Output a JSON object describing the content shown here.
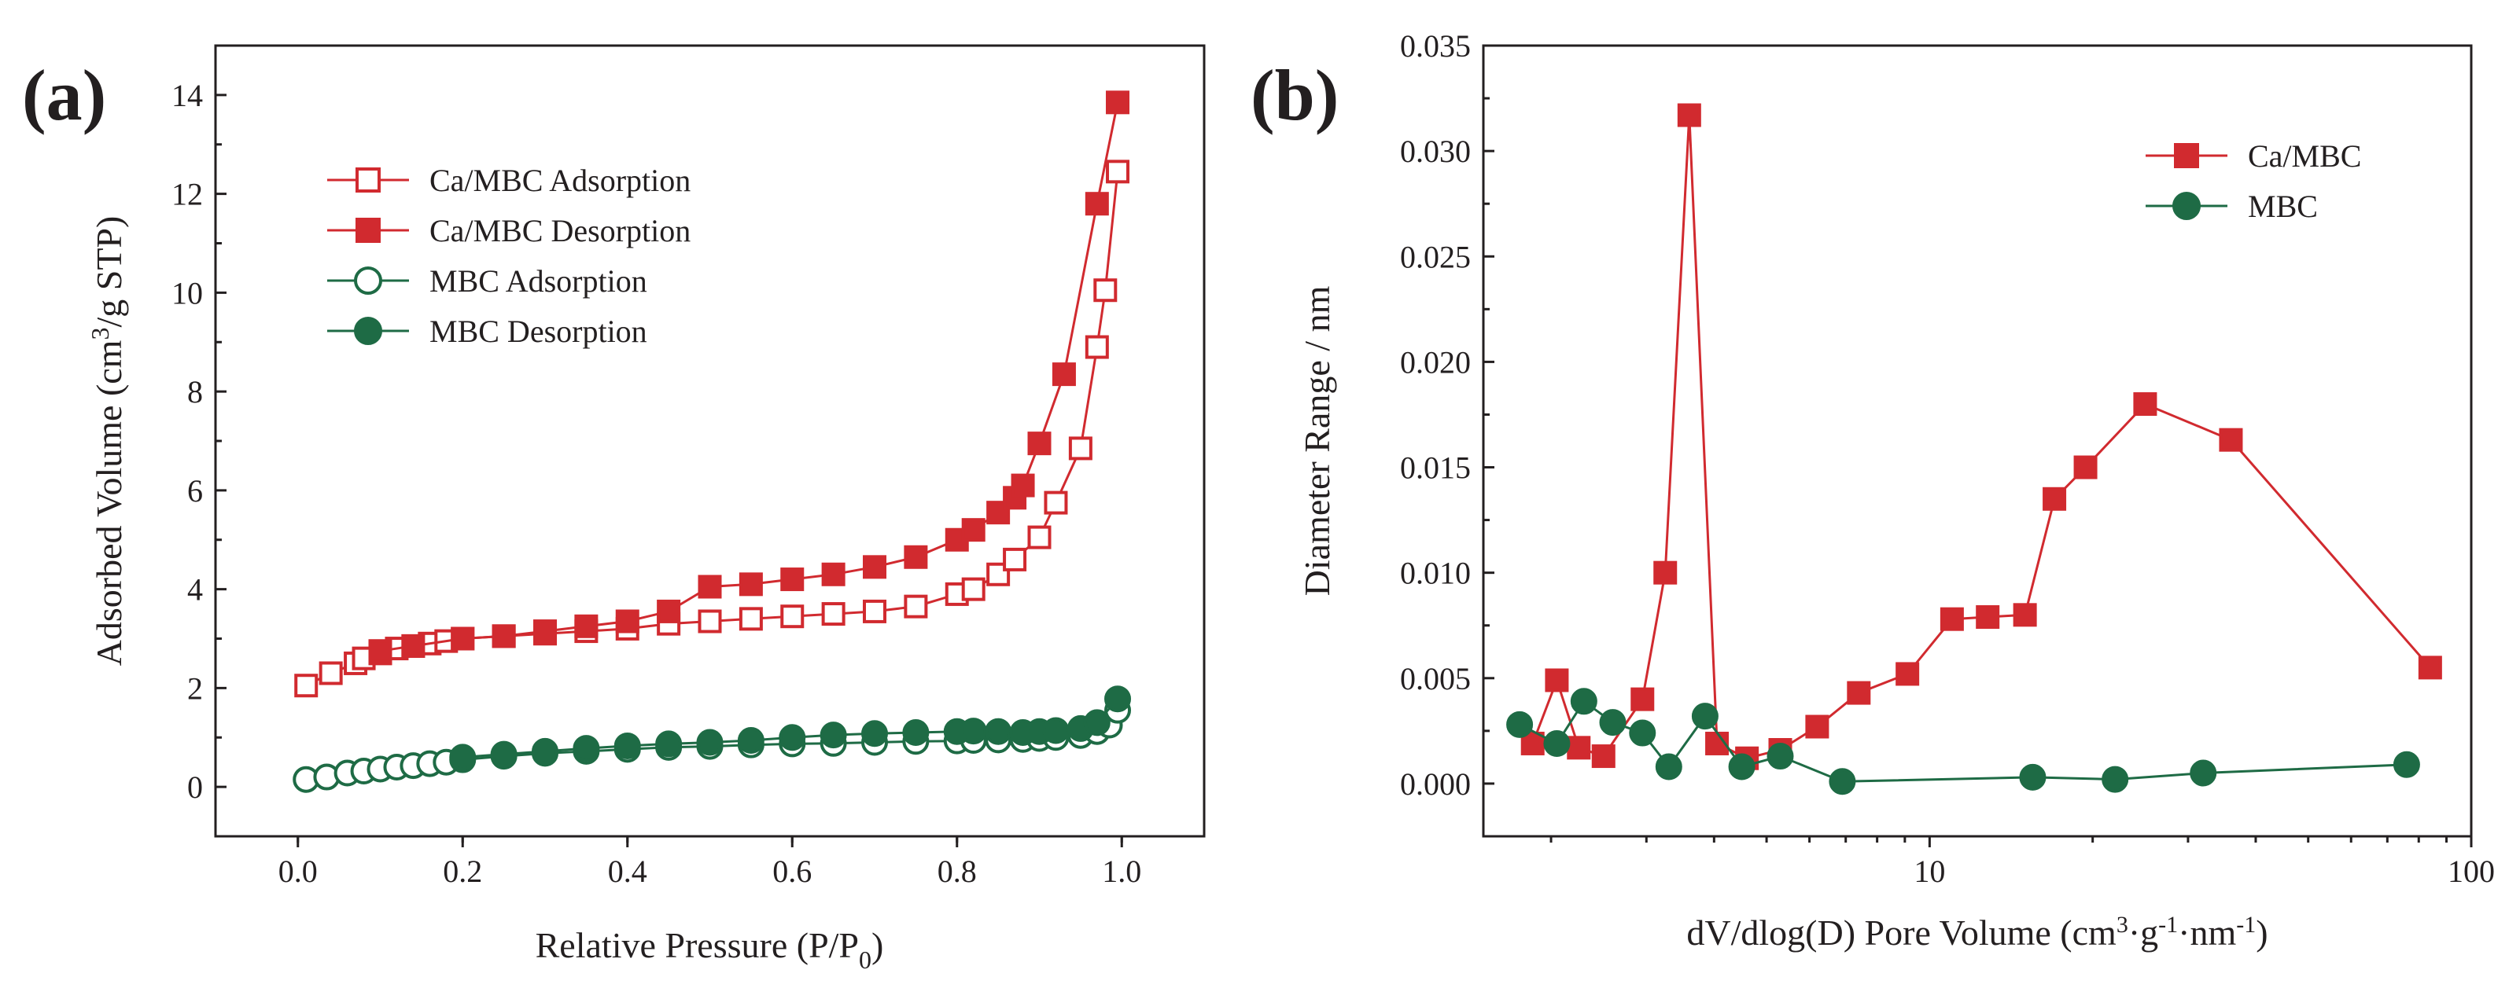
{
  "figure": {
    "panel_a_label": "(a)",
    "panel_b_label": "(b)"
  },
  "chart_data": [
    {
      "panel": "(a)",
      "type": "line",
      "title": "",
      "xlabel": "Relative Pressure (P/P",
      "xlabel_sub": "0",
      "xlabel_end": ")",
      "ylabel_pre": "Adsorbed Volume (cm",
      "ylabel_sup": "3",
      "ylabel_post": "/g STP)",
      "xlim": [
        -0.1,
        1.1
      ],
      "ylim": [
        -1,
        15
      ],
      "x_ticks": [
        0.0,
        0.2,
        0.4,
        0.6,
        0.8,
        1.0
      ],
      "x_tick_labels": [
        "0.0",
        "0.2",
        "0.4",
        "0.6",
        "0.8",
        "1.0"
      ],
      "y_ticks": [
        0,
        2,
        4,
        6,
        8,
        10,
        12,
        14
      ],
      "y_tick_labels": [
        "0",
        "2",
        "4",
        "6",
        "8",
        "10",
        "12",
        "14"
      ],
      "legend_position": "upper-left",
      "series": [
        {
          "name": "Ca/MBC Adsorption",
          "color": "#d12a2f",
          "marker": "square",
          "filled": false,
          "x": [
            0.01,
            0.04,
            0.07,
            0.08,
            0.1,
            0.12,
            0.14,
            0.16,
            0.18,
            0.2,
            0.25,
            0.3,
            0.35,
            0.4,
            0.45,
            0.5,
            0.55,
            0.6,
            0.65,
            0.7,
            0.75,
            0.8,
            0.82,
            0.85,
            0.87,
            0.9,
            0.92,
            0.95,
            0.97,
            0.98,
            0.995
          ],
          "y": [
            2.05,
            2.3,
            2.5,
            2.6,
            2.7,
            2.8,
            2.85,
            2.9,
            2.95,
            3.0,
            3.05,
            3.1,
            3.15,
            3.2,
            3.3,
            3.35,
            3.4,
            3.45,
            3.5,
            3.55,
            3.65,
            3.9,
            4.0,
            4.3,
            4.6,
            5.05,
            5.75,
            6.85,
            8.9,
            10.05,
            12.45
          ]
        },
        {
          "name": "Ca/MBC Desorption",
          "color": "#d12a2f",
          "marker": "square",
          "filled": true,
          "x": [
            0.1,
            0.14,
            0.2,
            0.25,
            0.3,
            0.35,
            0.4,
            0.45,
            0.5,
            0.55,
            0.6,
            0.65,
            0.7,
            0.75,
            0.8,
            0.82,
            0.85,
            0.87,
            0.88,
            0.9,
            0.93,
            0.97,
            0.995
          ],
          "y": [
            2.75,
            2.85,
            3.0,
            3.05,
            3.15,
            3.25,
            3.35,
            3.55,
            4.05,
            4.1,
            4.2,
            4.3,
            4.45,
            4.65,
            5.0,
            5.2,
            5.55,
            5.85,
            6.1,
            6.95,
            8.35,
            11.8,
            13.85
          ]
        },
        {
          "name": "MBC Adsorption",
          "color": "#1e6b45",
          "marker": "circle",
          "filled": false,
          "x": [
            0.01,
            0.035,
            0.06,
            0.08,
            0.1,
            0.12,
            0.14,
            0.16,
            0.18,
            0.2,
            0.25,
            0.3,
            0.35,
            0.4,
            0.45,
            0.5,
            0.55,
            0.6,
            0.65,
            0.7,
            0.75,
            0.8,
            0.82,
            0.85,
            0.88,
            0.9,
            0.92,
            0.95,
            0.97,
            0.985,
            0.995
          ],
          "y": [
            0.15,
            0.2,
            0.28,
            0.32,
            0.36,
            0.4,
            0.43,
            0.47,
            0.5,
            0.55,
            0.62,
            0.68,
            0.72,
            0.76,
            0.8,
            0.82,
            0.85,
            0.87,
            0.88,
            0.9,
            0.92,
            0.93,
            0.94,
            0.95,
            0.96,
            0.98,
            1.0,
            1.04,
            1.12,
            1.25,
            1.55
          ]
        },
        {
          "name": "MBC Desorption",
          "color": "#1e6b45",
          "marker": "circle",
          "filled": true,
          "x": [
            0.2,
            0.25,
            0.3,
            0.35,
            0.4,
            0.45,
            0.5,
            0.55,
            0.6,
            0.65,
            0.7,
            0.75,
            0.8,
            0.82,
            0.85,
            0.88,
            0.9,
            0.92,
            0.95,
            0.97,
            0.995
          ],
          "y": [
            0.6,
            0.66,
            0.72,
            0.78,
            0.83,
            0.87,
            0.9,
            0.94,
            1.0,
            1.05,
            1.08,
            1.1,
            1.12,
            1.13,
            1.12,
            1.1,
            1.12,
            1.14,
            1.18,
            1.3,
            1.78
          ]
        }
      ]
    },
    {
      "panel": "(b)",
      "type": "line",
      "title": "",
      "xscale": "log",
      "xlabel_pre": "dV/dlog(D) Pore Volume (cm",
      "xlabel_sup1": "3",
      "xlabel_mid1": "·g",
      "xlabel_sup2": "-1",
      "xlabel_mid2": "·nm",
      "xlabel_sup3": "-1",
      "xlabel_end": ")",
      "ylabel": "Diameter Range / nm",
      "xlim": [
        1.5,
        100
      ],
      "ylim": [
        -0.0025,
        0.035
      ],
      "x_ticks": [
        10,
        100
      ],
      "x_tick_labels": [
        "10",
        "100"
      ],
      "y_ticks": [
        0.0,
        0.005,
        0.01,
        0.015,
        0.02,
        0.025,
        0.03,
        0.035
      ],
      "y_tick_labels": [
        "0.000",
        "0.005",
        "0.010",
        "0.015",
        "0.020",
        "0.025",
        "0.030",
        "0.035"
      ],
      "legend_position": "upper-right",
      "series": [
        {
          "name": "Ca/MBC",
          "color": "#d12a2f",
          "marker": "square",
          "filled": true,
          "x": [
            1.85,
            2.05,
            2.25,
            2.5,
            2.95,
            3.25,
            3.6,
            4.05,
            4.6,
            5.3,
            6.2,
            7.4,
            9.1,
            11.0,
            12.8,
            15.0,
            17.0,
            19.4,
            25.0,
            36.0,
            84.0
          ],
          "y": [
            0.0019,
            0.0049,
            0.0017,
            0.0013,
            0.004,
            0.01,
            0.0317,
            0.0019,
            0.0012,
            0.0016,
            0.0027,
            0.0043,
            0.0052,
            0.0078,
            0.0079,
            0.008,
            0.0135,
            0.015,
            0.018,
            0.0163,
            0.0055
          ]
        },
        {
          "name": "MBC",
          "color": "#1e6b45",
          "marker": "circle",
          "filled": true,
          "x": [
            1.75,
            2.05,
            2.3,
            2.6,
            2.95,
            3.3,
            3.85,
            4.5,
            5.3,
            6.9,
            15.5,
            22.0,
            32.0,
            76.0
          ],
          "y": [
            0.0028,
            0.0019,
            0.0039,
            0.0029,
            0.0024,
            0.0008,
            0.0032,
            0.0008,
            0.0013,
            0.0001,
            0.0003,
            0.0002,
            0.0005,
            0.0009
          ]
        }
      ]
    }
  ]
}
